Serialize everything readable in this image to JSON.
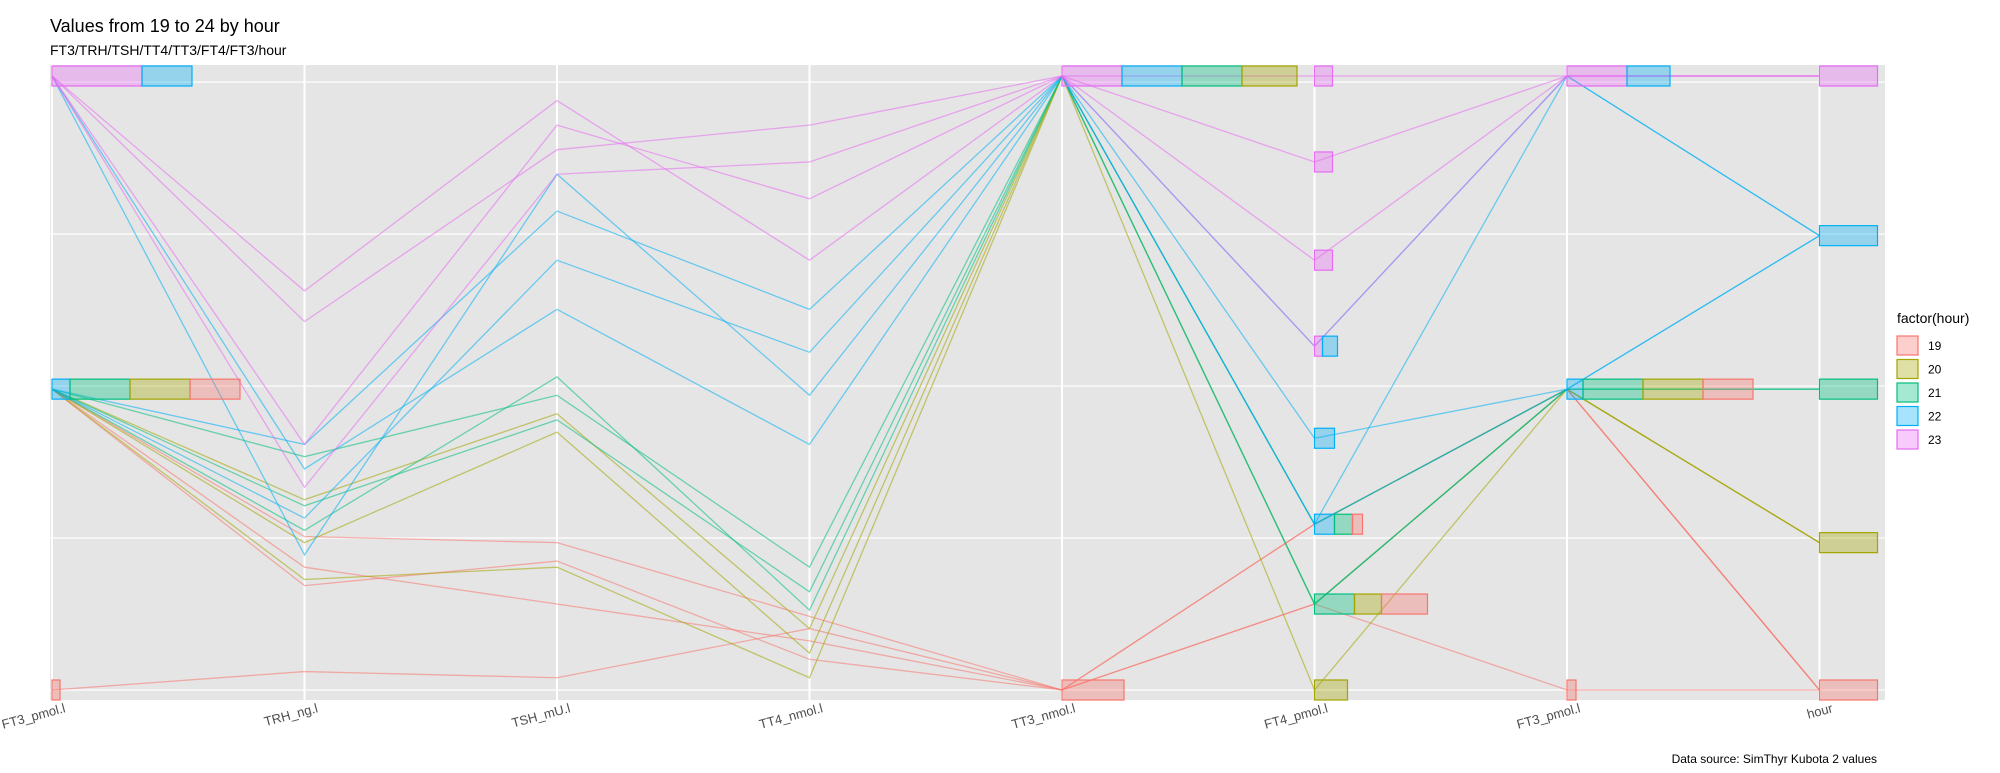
{
  "chart_data": {
    "type": "parallel-coordinates",
    "title": "Values from 19 to 24 by hour",
    "subtitle": "FT3/TRH/TSH/TT4/TT3/FT4/FT3/hour",
    "caption": "Data source: SimThyr Kubota 2 values",
    "axes": [
      "FT3_pmol.l",
      "TRH_ng.l",
      "TSH_mU.l",
      "TT4_nmol.l",
      "TT3_nmol.l",
      "FT4_pmol.l",
      "FT3_pmol.l",
      "hour"
    ],
    "ylim": [
      0,
      1
    ],
    "grid": true,
    "legend": {
      "title": "factor(hour)",
      "position": "right",
      "items": [
        {
          "label": "19",
          "color": "#F8766D"
        },
        {
          "label": "20",
          "color": "#A3A500"
        },
        {
          "label": "21",
          "color": "#00BF7D"
        },
        {
          "label": "22",
          "color": "#00B0F6"
        },
        {
          "label": "23",
          "color": "#E76BF3"
        }
      ]
    },
    "series": [
      {
        "name": "19",
        "color": "#F8766D",
        "values": [
          [
            0.0,
            0.03,
            0.02,
            0.1,
            0.0,
            0.14,
            0.0,
            0.0
          ],
          [
            0.49,
            0.17,
            0.21,
            0.05,
            0.0,
            0.27,
            0.49,
            0.0
          ],
          [
            0.49,
            0.2,
            0.14,
            0.08,
            0.0,
            0.14,
            0.49,
            0.0
          ],
          [
            0.49,
            0.25,
            0.24,
            0.12,
            0.0,
            0.27,
            0.49,
            0.0
          ]
        ]
      },
      {
        "name": "20",
        "color": "#A3A500",
        "values": [
          [
            0.49,
            0.18,
            0.2,
            0.02,
            1.0,
            0.0,
            0.49,
            0.24
          ],
          [
            0.49,
            0.24,
            0.42,
            0.06,
            1.0,
            0.14,
            0.49,
            0.24
          ],
          [
            0.49,
            0.31,
            0.45,
            0.1,
            1.0,
            0.27,
            0.49,
            0.24
          ]
        ]
      },
      {
        "name": "21",
        "color": "#00BF7D",
        "values": [
          [
            0.49,
            0.3,
            0.44,
            0.16,
            1.0,
            0.14,
            0.49,
            0.49
          ],
          [
            0.49,
            0.26,
            0.51,
            0.13,
            1.0,
            0.14,
            0.49,
            0.49
          ],
          [
            0.49,
            0.38,
            0.48,
            0.2,
            1.0,
            0.27,
            0.49,
            0.49
          ]
        ]
      },
      {
        "name": "22",
        "color": "#00B0F6",
        "values": [
          [
            1.0,
            0.36,
            0.62,
            0.4,
            1.0,
            0.27,
            1.0,
            0.74
          ],
          [
            0.49,
            0.28,
            0.7,
            0.55,
            1.0,
            0.41,
            0.49,
            0.74
          ],
          [
            1.0,
            0.22,
            0.84,
            0.48,
            1.0,
            0.56,
            1.0,
            0.74
          ],
          [
            0.49,
            0.4,
            0.78,
            0.62,
            1.0,
            0.27,
            0.49,
            0.74
          ]
        ]
      },
      {
        "name": "23",
        "color": "#E76BF3",
        "values": [
          [
            1.0,
            0.6,
            0.88,
            0.92,
            1.0,
            1.0,
            1.0,
            1.0
          ],
          [
            1.0,
            0.4,
            0.92,
            0.8,
            1.0,
            0.7,
            1.0,
            1.0
          ],
          [
            1.0,
            0.65,
            0.96,
            0.7,
            1.0,
            0.86,
            1.0,
            1.0
          ],
          [
            1.0,
            0.33,
            0.84,
            0.86,
            1.0,
            0.56,
            1.0,
            1.0
          ]
        ]
      }
    ],
    "histograms": [
      {
        "axis": 0,
        "bins": [
          {
            "y": 1.0,
            "counts": [
              [
                "23",
                90
              ],
              [
                "22",
                50
              ]
            ]
          },
          {
            "y": 0.49,
            "counts": [
              [
                "22",
                18
              ],
              [
                "21",
                60
              ],
              [
                "20",
                60
              ],
              [
                "19",
                50
              ]
            ]
          },
          {
            "y": 0.0,
            "counts": [
              [
                "19",
                8
              ]
            ]
          }
        ]
      },
      {
        "axis": 4,
        "bins": [
          {
            "y": 1.0,
            "counts": [
              [
                "23",
                60
              ],
              [
                "22",
                60
              ],
              [
                "21",
                60
              ],
              [
                "20",
                55
              ]
            ]
          },
          {
            "y": 0.0,
            "counts": [
              [
                "19",
                62
              ]
            ]
          }
        ]
      },
      {
        "axis": 5,
        "bins": [
          {
            "y": 1.0,
            "counts": [
              [
                "23",
                18
              ]
            ]
          },
          {
            "y": 0.86,
            "counts": [
              [
                "23",
                18
              ]
            ]
          },
          {
            "y": 0.7,
            "counts": [
              [
                "23",
                18
              ]
            ]
          },
          {
            "y": 0.56,
            "counts": [
              [
                "23",
                8
              ],
              [
                "22",
                15
              ]
            ]
          },
          {
            "y": 0.41,
            "counts": [
              [
                "22",
                20
              ]
            ]
          },
          {
            "y": 0.27,
            "counts": [
              [
                "22",
                20
              ],
              [
                "21",
                18
              ],
              [
                "19",
                10
              ]
            ]
          },
          {
            "y": 0.14,
            "counts": [
              [
                "21",
                40
              ],
              [
                "20",
                27
              ],
              [
                "19",
                46
              ]
            ]
          },
          {
            "y": 0.0,
            "counts": [
              [
                "20",
                33
              ]
            ]
          }
        ]
      },
      {
        "axis": 6,
        "bins": [
          {
            "y": 1.0,
            "counts": [
              [
                "23",
                60
              ],
              [
                "22",
                43
              ]
            ]
          },
          {
            "y": 0.49,
            "counts": [
              [
                "22",
                16
              ],
              [
                "21",
                60
              ],
              [
                "20",
                60
              ],
              [
                "19",
                50
              ]
            ]
          },
          {
            "y": 0.0,
            "counts": [
              [
                "19",
                9
              ]
            ]
          }
        ]
      },
      {
        "axis": 7,
        "bins": [
          {
            "y": 1.0,
            "counts": [
              [
                "23",
                58
              ]
            ]
          },
          {
            "y": 0.74,
            "counts": [
              [
                "22",
                58
              ]
            ]
          },
          {
            "y": 0.49,
            "counts": [
              [
                "21",
                58
              ]
            ]
          },
          {
            "y": 0.24,
            "counts": [
              [
                "20",
                58
              ]
            ]
          },
          {
            "y": 0.0,
            "counts": [
              [
                "19",
                58
              ]
            ]
          }
        ]
      }
    ]
  }
}
